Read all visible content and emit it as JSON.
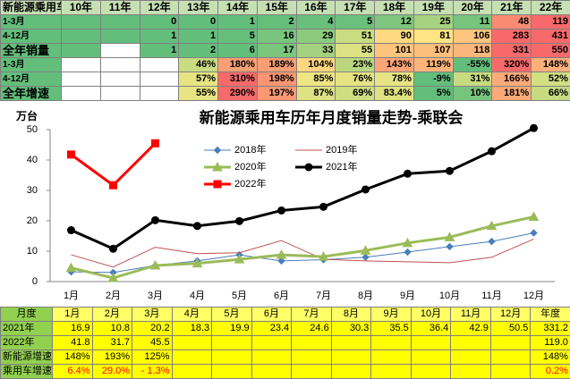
{
  "top_table": {
    "header": [
      "新能源乘用车",
      "10年",
      "11年",
      "12年",
      "13年",
      "14年",
      "15年",
      "16年",
      "17年",
      "18年",
      "19年",
      "20年",
      "21年",
      "22年"
    ],
    "rows": [
      {
        "label": "1-3月",
        "cells": [
          null,
          null,
          "0",
          "0",
          "1",
          "2",
          "4",
          "5",
          "12",
          "25",
          "11",
          "48",
          "119"
        ],
        "colors": [
          "#63be7b",
          "#63be7b",
          "#63be7b",
          "#63be7b",
          "#63be7b",
          "#65bf7b",
          "#69c07b",
          "#6bc07b",
          "#7ec67d",
          "#a6d27f",
          "#77c47d",
          "#f98b72",
          "#f8696b"
        ]
      },
      {
        "label": "4-12月",
        "cells": [
          null,
          null,
          "1",
          "1",
          "5",
          "16",
          "29",
          "51",
          "90",
          "81",
          "106",
          "283",
          "431"
        ],
        "colors": [
          "#63be7b",
          "#63be7b",
          "#63be7b",
          "#63be7b",
          "#65bf7b",
          "#78c47d",
          "#8ccb7e",
          "#c9dc81",
          "#fed981",
          "#fee482",
          "#fdc57d",
          "#f8696b",
          "#f8696b"
        ]
      },
      {
        "label": "全年销量",
        "cells": [
          null,
          null,
          "1",
          "2",
          "6",
          "17",
          "33",
          "55",
          "101",
          "107",
          "118",
          "331",
          "550"
        ],
        "colors": [
          "#63be7b",
          "#ffffff",
          "#63be7b",
          "#63be7b",
          "#63be7b",
          "#7bc57d",
          "#a3d17f",
          "#dde182",
          "#fdc47d",
          "#fdbf7c",
          "#fcb67a",
          "#f8696b",
          "#f8696b"
        ]
      },
      {
        "label": "1-3月",
        "cells": [
          null,
          null,
          null,
          "46%",
          "180%",
          "189%",
          "104%",
          "23%",
          "143%",
          "119%",
          "-55%",
          "320%",
          "148%"
        ],
        "colors": [
          "#ffffff",
          "#ffffff",
          "#ffffff",
          "#c9dc81",
          "#fb9e75",
          "#fb9d75",
          "#fed680",
          "#bad780",
          "#fca577",
          "#fdb47a",
          "#63be7b",
          "#f8696b",
          "#fcb07a"
        ]
      },
      {
        "label": "4-12月",
        "cells": [
          null,
          null,
          null,
          "57%",
          "310%",
          "198%",
          "85%",
          "76%",
          "78%",
          "-9%",
          "31%",
          "166%",
          "52%"
        ],
        "colors": [
          "#ffffff",
          "#ffffff",
          "#ffffff",
          "#e6e483",
          "#f8696b",
          "#fa9573",
          "#eee583",
          "#e6e383",
          "#e7e483",
          "#63be7b",
          "#c7dc81",
          "#fbaa78",
          "#d2df82"
        ]
      },
      {
        "label": "全年增速",
        "cells": [
          null,
          null,
          null,
          "55%",
          "290%",
          "197%",
          "87%",
          "69%",
          "83.4%",
          "5%",
          "10%",
          "181%",
          "66%"
        ],
        "colors": [
          "#ffffff",
          "#ffffff",
          "#ffffff",
          "#e7e483",
          "#f8696b",
          "#fa9874",
          "#dde182",
          "#cfde81",
          "#e0e282",
          "#63be7b",
          "#78c47d",
          "#fbaa78",
          "#c6db81"
        ]
      }
    ]
  },
  "chart_data": {
    "type": "line",
    "title": "新能源乘用车历年月度销量走势-乘联会",
    "y_label": "万台",
    "categories": [
      "1月",
      "2月",
      "3月",
      "4月",
      "5月",
      "6月",
      "7月",
      "8月",
      "9月",
      "10月",
      "11月",
      "12月"
    ],
    "ylim": [
      0,
      50
    ],
    "yticks": [
      0,
      10,
      20,
      30,
      40,
      50
    ],
    "grid": false,
    "series": [
      {
        "name": "2018年",
        "color": "#4a7ebb",
        "marker": "diamond",
        "values": [
          3.2,
          3.0,
          5.3,
          6.8,
          8.8,
          6.8,
          7.2,
          8.0,
          9.7,
          11.5,
          13.2,
          16.0
        ]
      },
      {
        "name": "2019年",
        "color": "#c0504d",
        "values": [
          8.8,
          4.8,
          11.3,
          9.2,
          9.5,
          13.5,
          7.3,
          6.8,
          6.5,
          6.2,
          8.0,
          14.0
        ]
      },
      {
        "name": "2020年",
        "color": "#9bbb59",
        "marker": "triangle",
        "values": [
          4.5,
          1.2,
          5.3,
          6.0,
          7.3,
          8.8,
          8.2,
          10.2,
          12.7,
          14.6,
          18.3,
          21.3
        ]
      },
      {
        "name": "2021年",
        "color": "#000000",
        "marker": "circle",
        "values": [
          16.9,
          10.8,
          20.2,
          18.3,
          19.9,
          23.4,
          24.6,
          30.3,
          35.5,
          36.4,
          42.9,
          50.5
        ]
      },
      {
        "name": "2022年",
        "color": "#ff0000",
        "marker": "square",
        "values": [
          41.8,
          31.7,
          45.5,
          null,
          null,
          null,
          null,
          null,
          null,
          null,
          null,
          null
        ]
      }
    ]
  },
  "bottom_table": {
    "header": [
      "月度",
      "1月",
      "2月",
      "3月",
      "4月",
      "5月",
      "6月",
      "7月",
      "8月",
      "9月",
      "10月",
      "11月",
      "12月",
      "年度"
    ],
    "rows": [
      {
        "label": "2021年",
        "cells": [
          "16.9",
          "10.8",
          "20.2",
          "18.3",
          "19.9",
          "23.4",
          "24.6",
          "30.3",
          "35.5",
          "36.4",
          "42.9",
          "50.5",
          "331.2"
        ]
      },
      {
        "label": "2022年",
        "cells": [
          "41.8",
          "31.7",
          "45.5",
          null,
          null,
          null,
          null,
          null,
          null,
          null,
          null,
          null,
          "119.0"
        ]
      },
      {
        "label": "新能源增速",
        "cells": [
          "148%",
          "193%",
          "125%",
          null,
          null,
          null,
          null,
          null,
          null,
          null,
          null,
          null,
          "148%"
        ]
      },
      {
        "label": "乘用车增速",
        "color": "#ff0000",
        "cells": [
          "6.4%",
          "29.0%",
          "- 1.3%",
          null,
          null,
          null,
          null,
          null,
          null,
          null,
          null,
          null,
          "0.2%"
        ]
      }
    ]
  }
}
